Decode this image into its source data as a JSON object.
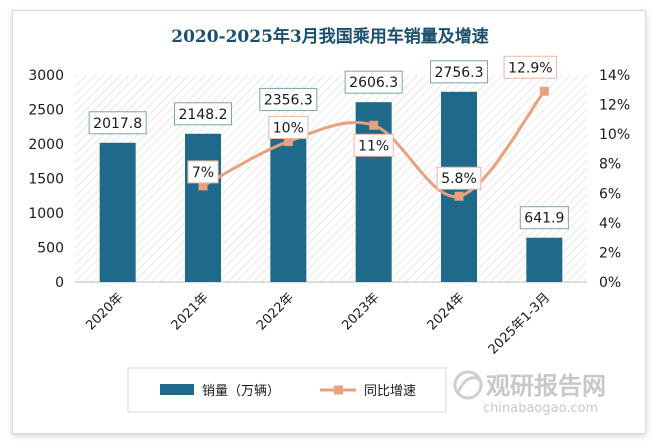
{
  "chart_data": {
    "type": "bar",
    "title": "2020-2025年3月我国乘用车销量及增速",
    "categories": [
      "2020年",
      "2021年",
      "2022年",
      "2023年",
      "2024年",
      "2025年1-3月"
    ],
    "series": [
      {
        "name": "销量（万辆）",
        "type": "bar",
        "axis": "left",
        "values": [
          2017.8,
          2148.2,
          2356.3,
          2606.3,
          2756.3,
          641.9
        ],
        "labels": [
          "2017.8",
          "2148.2",
          "2356.3",
          "2606.3",
          "2756.3",
          "641.9"
        ],
        "color": "#1f6a8a"
      },
      {
        "name": "同比增速",
        "type": "line",
        "axis": "right",
        "values": [
          null,
          6.5,
          9.5,
          10.6,
          5.8,
          12.9
        ],
        "labels": [
          "",
          "7%",
          "10%",
          "11%",
          "5.8%",
          "12.9%"
        ],
        "color": "#e8a07e"
      }
    ],
    "y_left": {
      "min": 0,
      "max": 3000,
      "step": 500,
      "ticks": [
        "0",
        "500",
        "1000",
        "1500",
        "2000",
        "2500",
        "3000"
      ]
    },
    "y_right": {
      "min": 0,
      "max": 14,
      "step": 2,
      "ticks": [
        "0%",
        "2%",
        "4%",
        "6%",
        "8%",
        "10%",
        "12%",
        "14%"
      ]
    },
    "grid": false,
    "legend": "bottom"
  },
  "watermark": {
    "text_cn": "观研报告网",
    "text_en": "chinabaogao.com"
  }
}
